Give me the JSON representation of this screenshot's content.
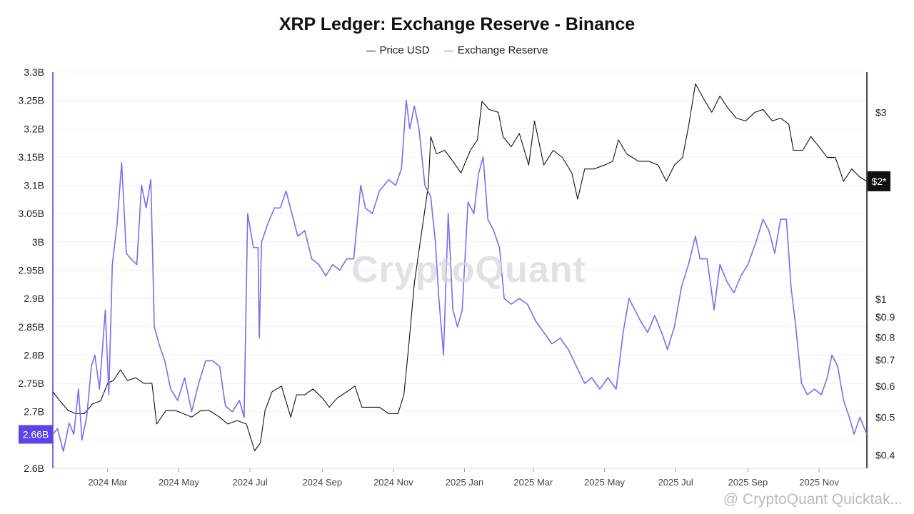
{
  "chart_data": {
    "type": "line",
    "title": "XRP Ledger: Exchange Reserve - Binance",
    "legend": {
      "placement": "top-center",
      "entries": [
        "Price USD",
        "Exchange Reserve"
      ]
    },
    "x_axis": {
      "type": "date",
      "range": [
        "2024-01-14",
        "2025-12-12"
      ],
      "ticks": [
        {
          "date": "2024-03-01",
          "label": "2024 Mar"
        },
        {
          "date": "2024-05-01",
          "label": "2024 May"
        },
        {
          "date": "2024-07-01",
          "label": "2024 Jul"
        },
        {
          "date": "2024-09-01",
          "label": "2024 Sep"
        },
        {
          "date": "2024-11-01",
          "label": "2024 Nov"
        },
        {
          "date": "2025-01-01",
          "label": "2025 Jan"
        },
        {
          "date": "2025-03-01",
          "label": "2025 Mar"
        },
        {
          "date": "2025-05-01",
          "label": "2025 May"
        },
        {
          "date": "2025-07-01",
          "label": "2025 Jul"
        },
        {
          "date": "2025-09-01",
          "label": "2025 Sep"
        },
        {
          "date": "2025-11-01",
          "label": "2025 Nov"
        }
      ]
    },
    "y_left": {
      "range": [
        2.6,
        3.3
      ],
      "ticks": [
        {
          "value": 2.6,
          "label": "2.6B"
        },
        {
          "value": 2.65,
          "label": "2.65B"
        },
        {
          "value": 2.7,
          "label": "2.7B"
        },
        {
          "value": 2.75,
          "label": "2.75B"
        },
        {
          "value": 2.8,
          "label": "2.8B"
        },
        {
          "value": 2.85,
          "label": "2.85B"
        },
        {
          "value": 2.9,
          "label": "2.9B"
        },
        {
          "value": 2.95,
          "label": "2.95B"
        },
        {
          "value": 3.0,
          "label": "3B"
        },
        {
          "value": 3.05,
          "label": "3.05B"
        },
        {
          "value": 3.1,
          "label": "3.1B"
        },
        {
          "value": 3.15,
          "label": "3.15B"
        },
        {
          "value": 3.2,
          "label": "3.2B"
        },
        {
          "value": 3.25,
          "label": "3.25B"
        },
        {
          "value": 3.3,
          "label": "3.3B"
        }
      ],
      "current_label": "2.66B"
    },
    "y_right": {
      "scale": "log",
      "range": [
        0.37,
        3.8
      ],
      "ticks": [
        {
          "value": 0.4,
          "label": "$0.4"
        },
        {
          "value": 0.5,
          "label": "$0.5"
        },
        {
          "value": 0.6,
          "label": "$0.6"
        },
        {
          "value": 0.7,
          "label": "$0.7"
        },
        {
          "value": 0.8,
          "label": "$0.8"
        },
        {
          "value": 0.9,
          "label": "$0.9"
        },
        {
          "value": 1,
          "label": "$1"
        },
        {
          "value": 3,
          "label": "$3"
        }
      ],
      "current_label": "$2*"
    },
    "grid": true,
    "series": [
      {
        "name": "Price USD",
        "axis": "right",
        "color": "#111111",
        "points": [
          [
            "2024-01-14",
            0.58
          ],
          [
            "2024-01-20",
            0.55
          ],
          [
            "2024-01-27",
            0.52
          ],
          [
            "2024-02-03",
            0.51
          ],
          [
            "2024-02-10",
            0.51
          ],
          [
            "2024-02-17",
            0.54
          ],
          [
            "2024-02-24",
            0.55
          ],
          [
            "2024-03-01",
            0.61
          ],
          [
            "2024-03-06",
            0.62
          ],
          [
            "2024-03-12",
            0.66
          ],
          [
            "2024-03-18",
            0.62
          ],
          [
            "2024-03-25",
            0.63
          ],
          [
            "2024-04-01",
            0.61
          ],
          [
            "2024-04-08",
            0.61
          ],
          [
            "2024-04-12",
            0.48
          ],
          [
            "2024-04-20",
            0.52
          ],
          [
            "2024-04-28",
            0.52
          ],
          [
            "2024-05-05",
            0.51
          ],
          [
            "2024-05-12",
            0.5
          ],
          [
            "2024-05-20",
            0.52
          ],
          [
            "2024-05-27",
            0.52
          ],
          [
            "2024-06-05",
            0.5
          ],
          [
            "2024-06-12",
            0.48
          ],
          [
            "2024-06-20",
            0.49
          ],
          [
            "2024-06-28",
            0.48
          ],
          [
            "2024-07-05",
            0.41
          ],
          [
            "2024-07-10",
            0.43
          ],
          [
            "2024-07-14",
            0.52
          ],
          [
            "2024-07-20",
            0.58
          ],
          [
            "2024-07-28",
            0.6
          ],
          [
            "2024-08-05",
            0.5
          ],
          [
            "2024-08-10",
            0.57
          ],
          [
            "2024-08-17",
            0.57
          ],
          [
            "2024-08-24",
            0.59
          ],
          [
            "2024-09-01",
            0.56
          ],
          [
            "2024-09-07",
            0.53
          ],
          [
            "2024-09-14",
            0.56
          ],
          [
            "2024-09-22",
            0.58
          ],
          [
            "2024-09-29",
            0.6
          ],
          [
            "2024-10-05",
            0.53
          ],
          [
            "2024-10-12",
            0.53
          ],
          [
            "2024-10-20",
            0.53
          ],
          [
            "2024-10-28",
            0.51
          ],
          [
            "2024-11-05",
            0.51
          ],
          [
            "2024-11-10",
            0.57
          ],
          [
            "2024-11-14",
            0.75
          ],
          [
            "2024-11-19",
            1.1
          ],
          [
            "2024-11-24",
            1.4
          ],
          [
            "2024-12-01",
            1.95
          ],
          [
            "2024-12-03",
            2.6
          ],
          [
            "2024-12-08",
            2.35
          ],
          [
            "2024-12-15",
            2.4
          ],
          [
            "2024-12-22",
            2.25
          ],
          [
            "2024-12-29",
            2.1
          ],
          [
            "2025-01-06",
            2.4
          ],
          [
            "2025-01-12",
            2.55
          ],
          [
            "2025-01-16",
            3.2
          ],
          [
            "2025-01-22",
            3.05
          ],
          [
            "2025-01-30",
            3.0
          ],
          [
            "2025-02-03",
            2.6
          ],
          [
            "2025-02-10",
            2.45
          ],
          [
            "2025-02-17",
            2.65
          ],
          [
            "2025-02-25",
            2.2
          ],
          [
            "2025-03-02",
            2.85
          ],
          [
            "2025-03-10",
            2.2
          ],
          [
            "2025-03-18",
            2.4
          ],
          [
            "2025-03-26",
            2.3
          ],
          [
            "2025-04-03",
            2.1
          ],
          [
            "2025-04-08",
            1.8
          ],
          [
            "2025-04-14",
            2.15
          ],
          [
            "2025-04-22",
            2.15
          ],
          [
            "2025-05-01",
            2.2
          ],
          [
            "2025-05-08",
            2.25
          ],
          [
            "2025-05-13",
            2.55
          ],
          [
            "2025-05-20",
            2.35
          ],
          [
            "2025-05-30",
            2.25
          ],
          [
            "2025-06-08",
            2.25
          ],
          [
            "2025-06-16",
            2.2
          ],
          [
            "2025-06-23",
            2.0
          ],
          [
            "2025-06-30",
            2.2
          ],
          [
            "2025-07-07",
            2.3
          ],
          [
            "2025-07-12",
            2.75
          ],
          [
            "2025-07-18",
            3.55
          ],
          [
            "2025-07-25",
            3.25
          ],
          [
            "2025-08-01",
            3.0
          ],
          [
            "2025-08-08",
            3.3
          ],
          [
            "2025-08-14",
            3.1
          ],
          [
            "2025-08-22",
            2.9
          ],
          [
            "2025-08-30",
            2.85
          ],
          [
            "2025-09-07",
            3.0
          ],
          [
            "2025-09-14",
            3.05
          ],
          [
            "2025-09-22",
            2.85
          ],
          [
            "2025-09-29",
            2.9
          ],
          [
            "2025-10-06",
            2.8
          ],
          [
            "2025-10-10",
            2.4
          ],
          [
            "2025-10-18",
            2.4
          ],
          [
            "2025-10-25",
            2.6
          ],
          [
            "2025-11-01",
            2.45
          ],
          [
            "2025-11-08",
            2.3
          ],
          [
            "2025-11-15",
            2.3
          ],
          [
            "2025-11-22",
            2.0
          ],
          [
            "2025-11-29",
            2.15
          ],
          [
            "2025-12-06",
            2.05
          ],
          [
            "2025-12-12",
            2.0
          ]
        ]
      },
      {
        "name": "Exchange Reserve",
        "axis": "left",
        "color": "#7b6cf0",
        "points": [
          [
            "2024-01-14",
            2.66
          ],
          [
            "2024-01-18",
            2.67
          ],
          [
            "2024-01-23",
            2.63
          ],
          [
            "2024-01-28",
            2.68
          ],
          [
            "2024-02-01",
            2.66
          ],
          [
            "2024-02-05",
            2.74
          ],
          [
            "2024-02-08",
            2.65
          ],
          [
            "2024-02-12",
            2.69
          ],
          [
            "2024-02-16",
            2.78
          ],
          [
            "2024-02-19",
            2.8
          ],
          [
            "2024-02-23",
            2.74
          ],
          [
            "2024-02-28",
            2.88
          ],
          [
            "2024-03-02",
            2.73
          ],
          [
            "2024-03-05",
            2.96
          ],
          [
            "2024-03-09",
            3.03
          ],
          [
            "2024-03-13",
            3.14
          ],
          [
            "2024-03-17",
            2.98
          ],
          [
            "2024-03-21",
            2.97
          ],
          [
            "2024-03-26",
            2.96
          ],
          [
            "2024-03-30",
            3.1
          ],
          [
            "2024-04-03",
            3.06
          ],
          [
            "2024-04-07",
            3.11
          ],
          [
            "2024-04-10",
            2.85
          ],
          [
            "2024-04-14",
            2.82
          ],
          [
            "2024-04-19",
            2.79
          ],
          [
            "2024-04-24",
            2.74
          ],
          [
            "2024-04-30",
            2.72
          ],
          [
            "2024-05-06",
            2.76
          ],
          [
            "2024-05-12",
            2.7
          ],
          [
            "2024-05-18",
            2.75
          ],
          [
            "2024-05-24",
            2.79
          ],
          [
            "2024-05-30",
            2.79
          ],
          [
            "2024-06-05",
            2.78
          ],
          [
            "2024-06-10",
            2.71
          ],
          [
            "2024-06-16",
            2.7
          ],
          [
            "2024-06-22",
            2.72
          ],
          [
            "2024-06-26",
            2.69
          ],
          [
            "2024-06-29",
            3.05
          ],
          [
            "2024-07-04",
            2.99
          ],
          [
            "2024-07-08",
            2.99
          ],
          [
            "2024-07-09",
            2.83
          ],
          [
            "2024-07-11",
            3.0
          ],
          [
            "2024-07-16",
            3.03
          ],
          [
            "2024-07-22",
            3.06
          ],
          [
            "2024-07-27",
            3.06
          ],
          [
            "2024-08-01",
            3.09
          ],
          [
            "2024-08-06",
            3.05
          ],
          [
            "2024-08-11",
            3.01
          ],
          [
            "2024-08-17",
            3.02
          ],
          [
            "2024-08-23",
            2.97
          ],
          [
            "2024-08-29",
            2.96
          ],
          [
            "2024-09-04",
            2.94
          ],
          [
            "2024-09-10",
            2.96
          ],
          [
            "2024-09-16",
            2.95
          ],
          [
            "2024-09-22",
            2.97
          ],
          [
            "2024-09-28",
            2.97
          ],
          [
            "2024-10-04",
            3.1
          ],
          [
            "2024-10-08",
            3.06
          ],
          [
            "2024-10-14",
            3.05
          ],
          [
            "2024-10-20",
            3.09
          ],
          [
            "2024-10-28",
            3.11
          ],
          [
            "2024-11-03",
            3.1
          ],
          [
            "2024-11-08",
            3.13
          ],
          [
            "2024-11-12",
            3.25
          ],
          [
            "2024-11-15",
            3.2
          ],
          [
            "2024-11-19",
            3.24
          ],
          [
            "2024-11-23",
            3.2
          ],
          [
            "2024-11-28",
            3.1
          ],
          [
            "2024-12-03",
            3.08
          ],
          [
            "2024-12-07",
            3.0
          ],
          [
            "2024-12-10",
            2.9
          ],
          [
            "2024-12-14",
            2.8
          ],
          [
            "2024-12-18",
            3.05
          ],
          [
            "2024-12-22",
            2.88
          ],
          [
            "2024-12-26",
            2.85
          ],
          [
            "2024-12-30",
            2.88
          ],
          [
            "2025-01-04",
            3.07
          ],
          [
            "2025-01-09",
            3.05
          ],
          [
            "2025-01-13",
            3.12
          ],
          [
            "2025-01-17",
            3.15
          ],
          [
            "2025-01-21",
            3.04
          ],
          [
            "2025-01-26",
            3.02
          ],
          [
            "2025-01-31",
            2.99
          ],
          [
            "2025-02-04",
            2.9
          ],
          [
            "2025-02-10",
            2.89
          ],
          [
            "2025-02-17",
            2.9
          ],
          [
            "2025-02-24",
            2.89
          ],
          [
            "2025-03-03",
            2.86
          ],
          [
            "2025-03-10",
            2.84
          ],
          [
            "2025-03-17",
            2.82
          ],
          [
            "2025-03-24",
            2.83
          ],
          [
            "2025-03-31",
            2.81
          ],
          [
            "2025-04-07",
            2.78
          ],
          [
            "2025-04-14",
            2.75
          ],
          [
            "2025-04-20",
            2.76
          ],
          [
            "2025-04-27",
            2.74
          ],
          [
            "2025-05-04",
            2.76
          ],
          [
            "2025-05-11",
            2.74
          ],
          [
            "2025-05-17",
            2.84
          ],
          [
            "2025-05-22",
            2.9
          ],
          [
            "2025-05-27",
            2.88
          ],
          [
            "2025-06-01",
            2.86
          ],
          [
            "2025-06-07",
            2.84
          ],
          [
            "2025-06-13",
            2.87
          ],
          [
            "2025-06-19",
            2.84
          ],
          [
            "2025-06-24",
            2.81
          ],
          [
            "2025-06-30",
            2.85
          ],
          [
            "2025-07-06",
            2.92
          ],
          [
            "2025-07-12",
            2.96
          ],
          [
            "2025-07-18",
            3.01
          ],
          [
            "2025-07-22",
            2.97
          ],
          [
            "2025-07-28",
            2.97
          ],
          [
            "2025-08-03",
            2.88
          ],
          [
            "2025-08-08",
            2.96
          ],
          [
            "2025-08-14",
            2.93
          ],
          [
            "2025-08-20",
            2.91
          ],
          [
            "2025-08-26",
            2.94
          ],
          [
            "2025-09-01",
            2.96
          ],
          [
            "2025-09-08",
            3.0
          ],
          [
            "2025-09-14",
            3.04
          ],
          [
            "2025-09-19",
            3.02
          ],
          [
            "2025-09-24",
            2.98
          ],
          [
            "2025-09-29",
            3.04
          ],
          [
            "2025-10-04",
            3.04
          ],
          [
            "2025-10-08",
            2.92
          ],
          [
            "2025-10-12",
            2.85
          ],
          [
            "2025-10-17",
            2.75
          ],
          [
            "2025-10-22",
            2.73
          ],
          [
            "2025-10-28",
            2.74
          ],
          [
            "2025-11-03",
            2.73
          ],
          [
            "2025-11-08",
            2.76
          ],
          [
            "2025-11-12",
            2.8
          ],
          [
            "2025-11-17",
            2.78
          ],
          [
            "2025-11-22",
            2.72
          ],
          [
            "2025-11-27",
            2.69
          ],
          [
            "2025-12-01",
            2.66
          ],
          [
            "2025-12-06",
            2.69
          ],
          [
            "2025-12-12",
            2.66
          ]
        ]
      }
    ]
  },
  "watermark": "CryptoQuant",
  "footer": "@ CryptoQuant Quicktak..."
}
